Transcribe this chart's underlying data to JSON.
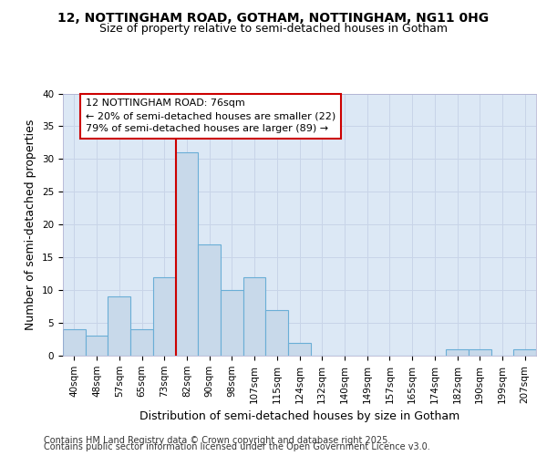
{
  "title_line1": "12, NOTTINGHAM ROAD, GOTHAM, NOTTINGHAM, NG11 0HG",
  "title_line2": "Size of property relative to semi-detached houses in Gotham",
  "xlabel": "Distribution of semi-detached houses by size in Gotham",
  "ylabel": "Number of semi-detached properties",
  "footer_line1": "Contains HM Land Registry data © Crown copyright and database right 2025.",
  "footer_line2": "Contains public sector information licensed under the Open Government Licence v3.0.",
  "categories": [
    "40sqm",
    "48sqm",
    "57sqm",
    "65sqm",
    "73sqm",
    "82sqm",
    "90sqm",
    "98sqm",
    "107sqm",
    "115sqm",
    "124sqm",
    "132sqm",
    "140sqm",
    "149sqm",
    "157sqm",
    "165sqm",
    "174sqm",
    "182sqm",
    "190sqm",
    "199sqm",
    "207sqm"
  ],
  "values": [
    4,
    3,
    9,
    4,
    12,
    31,
    17,
    10,
    12,
    7,
    2,
    0,
    0,
    0,
    0,
    0,
    0,
    1,
    1,
    0,
    1
  ],
  "bar_color": "#c8d9ea",
  "bar_edge_color": "#6aaed6",
  "annotation_label": "12 NOTTINGHAM ROAD: 76sqm",
  "annotation_smaller": "← 20% of semi-detached houses are smaller (22)",
  "annotation_larger": "79% of semi-detached houses are larger (89) →",
  "annotation_box_color": "#ffffff",
  "annotation_box_edge_color": "#cc0000",
  "vline_color": "#cc0000",
  "vline_x_index": 4.5,
  "ylim": [
    0,
    40
  ],
  "yticks": [
    0,
    5,
    10,
    15,
    20,
    25,
    30,
    35,
    40
  ],
  "grid_color": "#c8d4e8",
  "bg_color": "#dce8f5",
  "title_fontsize": 10,
  "subtitle_fontsize": 9,
  "axis_label_fontsize": 9,
  "tick_fontsize": 7.5,
  "annotation_fontsize": 8,
  "footer_fontsize": 7
}
